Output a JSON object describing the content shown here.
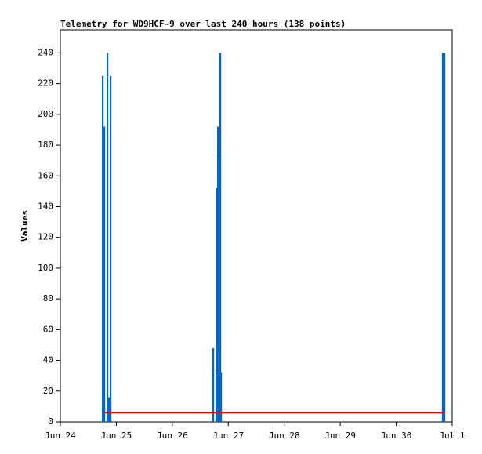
{
  "chart_data": {
    "type": "bar",
    "title": "Telemetry for WD9HCF-9 over last 240 hours (138 points)",
    "y_label": "Values",
    "series": [
      {
        "type": "bar",
        "color": "#0066cc",
        "x": [
          0.756,
          0.784,
          0.84,
          0.868,
          0.896,
          2.73,
          2.786,
          2.8,
          2.814,
          2.842,
          2.856,
          2.87,
          6.83,
          6.86
        ],
        "values": [
          225,
          192,
          240,
          16,
          225,
          48,
          32,
          152,
          192,
          176,
          240,
          32,
          240,
          240
        ]
      },
      {
        "type": "line",
        "color": "#ee0000",
        "x": [
          0.8,
          6.86
        ],
        "values": [
          6,
          6
        ]
      }
    ],
    "xlim": [
      0,
      7
    ],
    "xticks": [
      {
        "value": 0,
        "label": "Jun 24"
      },
      {
        "value": 1,
        "label": "Jun 25"
      },
      {
        "value": 2,
        "label": "Jun 26"
      },
      {
        "value": 3,
        "label": "Jun 27"
      },
      {
        "value": 4,
        "label": "Jun 28"
      },
      {
        "value": 5,
        "label": "Jun 29"
      },
      {
        "value": 6,
        "label": "Jun 30"
      },
      {
        "value": 7,
        "label": "Jul 1"
      }
    ],
    "ylim": [
      0,
      255
    ],
    "yticks": [
      0,
      20,
      40,
      60,
      80,
      100,
      120,
      140,
      160,
      180,
      200,
      220,
      240
    ]
  }
}
